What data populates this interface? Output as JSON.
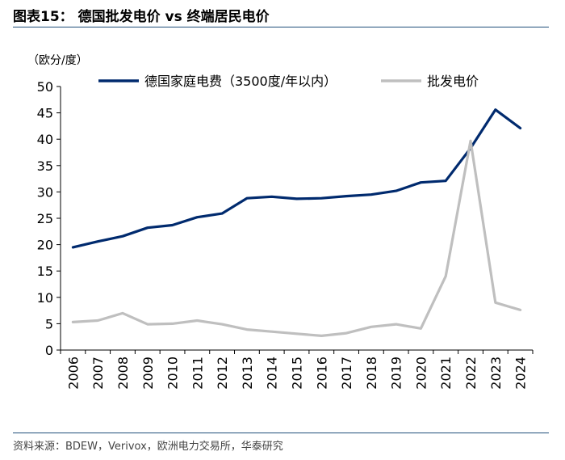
{
  "title": "图表15：   德国批发电价 vs 终端居民电价",
  "unit_label": "（欧分/度）",
  "source": "资料来源：BDEW，Verivox，欧洲电力交易所，华泰研究",
  "colors": {
    "series1": "#002a6e",
    "series2": "#bfbfbf",
    "rule": "#1f4e79"
  },
  "chart_data": {
    "type": "line",
    "title": "德国批发电价 vs 终端居民电价",
    "xlabel": "",
    "ylabel": "（欧分/度）",
    "ylim": [
      0,
      50
    ],
    "yticks": [
      0,
      5,
      10,
      15,
      20,
      25,
      30,
      35,
      40,
      45,
      50
    ],
    "legend": "top",
    "grid": false,
    "x": [
      "2006",
      "2007",
      "2008",
      "2009",
      "2010",
      "2011",
      "2012",
      "2013",
      "2014",
      "2015",
      "2016",
      "2017",
      "2018",
      "2019",
      "2020",
      "2021",
      "2022",
      "2023",
      "2024"
    ],
    "series": [
      {
        "name": "德国家庭电费（3500度/年以内）",
        "values": [
          19.5,
          20.6,
          21.6,
          23.2,
          23.7,
          25.2,
          25.9,
          28.8,
          29.1,
          28.7,
          28.8,
          29.2,
          29.5,
          30.2,
          31.8,
          32.1,
          38.3,
          45.6,
          42.1
        ]
      },
      {
        "name": "批发电价",
        "values": [
          5.3,
          5.6,
          7.0,
          4.9,
          5.0,
          5.6,
          4.9,
          3.9,
          3.5,
          3.1,
          2.7,
          3.2,
          4.4,
          4.9,
          4.1,
          14.0,
          39.7,
          9.0,
          7.6
        ]
      }
    ]
  }
}
